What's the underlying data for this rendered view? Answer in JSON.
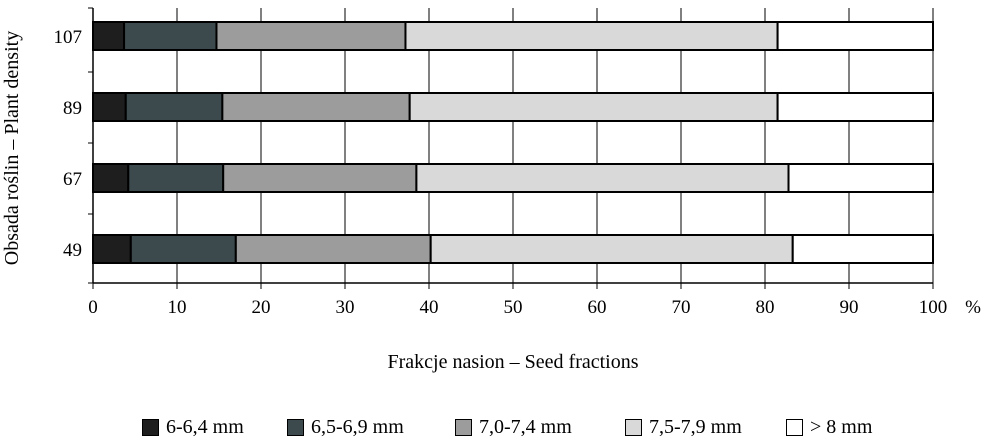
{
  "chart_data": {
    "type": "bar",
    "orientation": "horizontal",
    "stacked": true,
    "categories": [
      "107",
      "89",
      "67",
      "49"
    ],
    "series": [
      {
        "name": "6-6,4 mm",
        "color": "#1e1e1e",
        "values": [
          3.7,
          3.9,
          4.2,
          4.5
        ]
      },
      {
        "name": "6,5-6,9 mm",
        "color": "#3d4a4d",
        "values": [
          11.0,
          11.5,
          11.3,
          12.5
        ]
      },
      {
        "name": "7,0-7,4 mm",
        "color": "#9c9c9c",
        "values": [
          22.5,
          22.3,
          23.0,
          23.2
        ]
      },
      {
        "name": "7,5-7,9 mm",
        "color": "#d9d9d9",
        "values": [
          44.3,
          43.8,
          44.3,
          43.1
        ]
      },
      {
        "name": "> 8 mm",
        "color": "#ffffff",
        "values": [
          18.5,
          18.5,
          17.2,
          16.7
        ]
      }
    ],
    "xlim": [
      0,
      100
    ],
    "xticks": [
      0,
      10,
      20,
      30,
      40,
      50,
      60,
      70,
      80,
      90,
      100
    ],
    "x_unit": "%",
    "xlabel": "Frakcje nasion – Seed fractions",
    "ylabel": "Obsada roślin – Plant density",
    "grid": "vertical",
    "legend_position": "bottom"
  }
}
